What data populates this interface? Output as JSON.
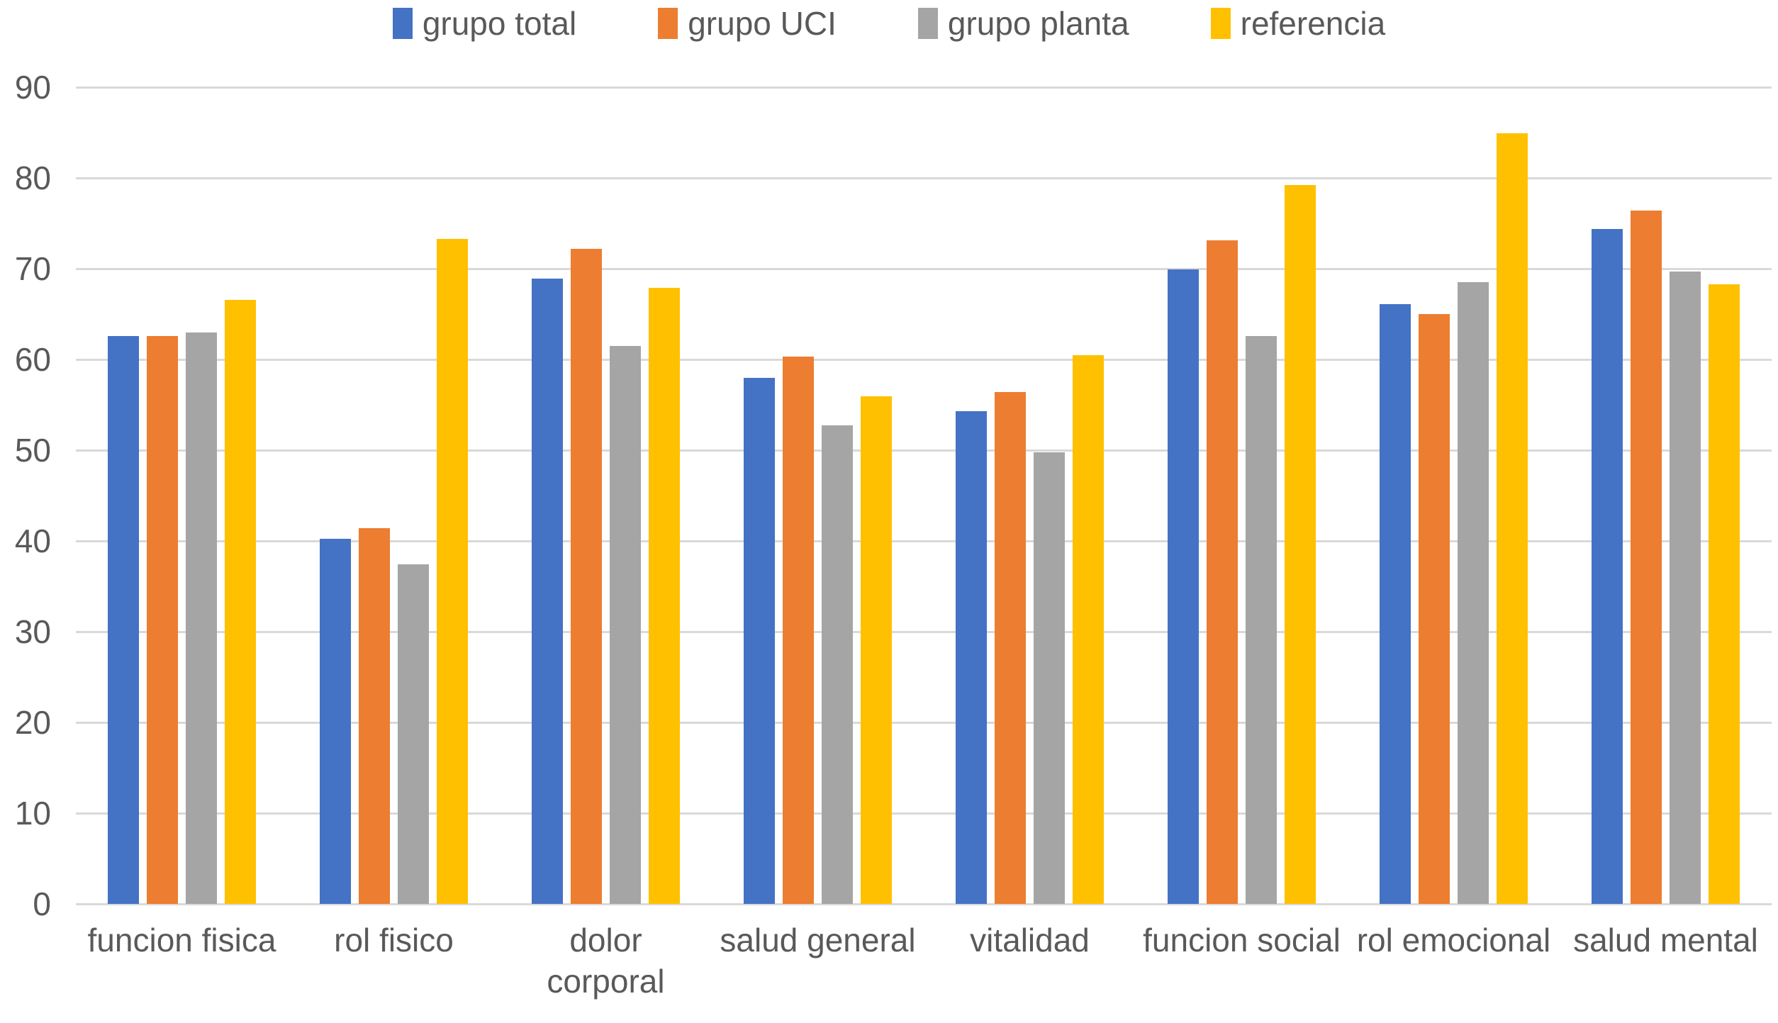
{
  "chart_data": {
    "type": "bar",
    "title": "",
    "categories": [
      "funcion fisica",
      "rol fisico",
      "dolor\ncorporal",
      "salud general",
      "vitalidad",
      "funcion social",
      "rol emocional",
      "salud mental"
    ],
    "series": [
      {
        "name": "grupo total",
        "color": "#4472C4",
        "values": [
          62.6,
          40.2,
          68.9,
          58.0,
          54.3,
          69.9,
          66.1,
          74.4
        ]
      },
      {
        "name": "grupo UCI",
        "color": "#ED7D31",
        "values": [
          62.6,
          41.4,
          72.2,
          60.3,
          56.4,
          73.1,
          65.0,
          76.4
        ]
      },
      {
        "name": "grupo planta",
        "color": "#A5A5A5",
        "values": [
          63.0,
          37.4,
          61.5,
          52.7,
          49.8,
          62.6,
          68.5,
          69.7
        ]
      },
      {
        "name": "referencia",
        "color": "#FFC000",
        "values": [
          66.6,
          73.3,
          67.9,
          55.9,
          60.5,
          79.2,
          84.9,
          68.3
        ]
      }
    ],
    "ylim": [
      0,
      90
    ],
    "yticks": [
      0,
      10,
      20,
      30,
      40,
      50,
      60,
      70,
      80,
      90
    ],
    "grid": true,
    "legend_position": "top",
    "axis_text_color": "#595959",
    "gridline_color": "#D9D9D9",
    "background": "#FFFFFF"
  }
}
